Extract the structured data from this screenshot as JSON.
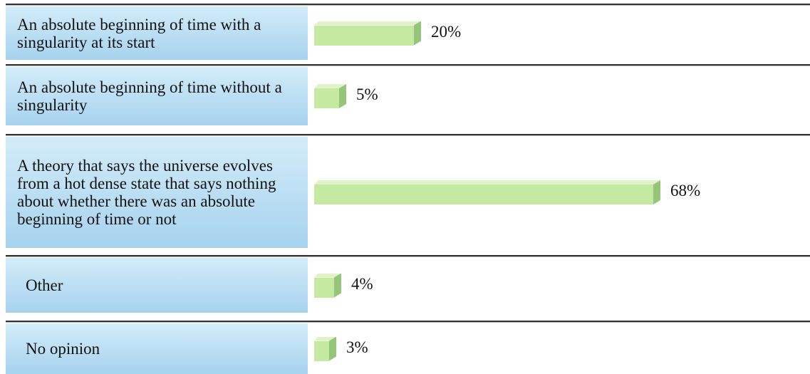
{
  "chart_data": {
    "type": "bar",
    "orientation": "horizontal",
    "categories": [
      "An absolute beginning of time with a singularity at its start",
      "An absolute beginning of time without a singularity",
      "A theory that says the universe evolves from a hot dense state that says nothing about whether there was an absolute beginning of time or not",
      "Other",
      "No opinion"
    ],
    "values": [
      20,
      5,
      68,
      4,
      3
    ],
    "value_labels": [
      "20%",
      "5%",
      "68%",
      "4%",
      "3%"
    ],
    "color": "#c6e9a2"
  }
}
